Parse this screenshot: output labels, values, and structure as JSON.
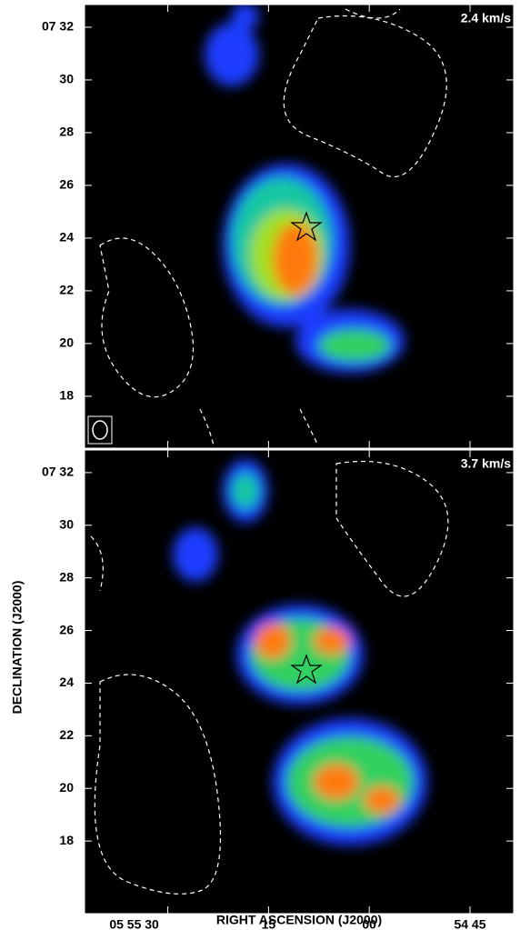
{
  "chart_data": [
    {
      "type": "image",
      "label": "2.4 km/s",
      "xlim": [
        102.4,
        38.5
      ],
      "xticks": [
        {
          "value": 90,
          "label": "05 55 30"
        },
        {
          "value": 75,
          "label": "15"
        },
        {
          "value": 60,
          "label": "00"
        },
        {
          "value": 45,
          "label": "54 45"
        }
      ],
      "ylim": [
        16.03,
        32.86
      ],
      "yticks": [
        {
          "value": 32,
          "label": "07 32"
        },
        30,
        28,
        26,
        24,
        22,
        20,
        18
      ]
    },
    {
      "type": "image",
      "label": "3.7 km/s",
      "xlim": [
        102.4,
        38.5
      ],
      "xticks": [
        {
          "value": 90,
          "label": "05 55 30"
        },
        {
          "value": 75,
          "label": "15"
        },
        {
          "value": 60,
          "label": "00"
        },
        {
          "value": 45,
          "label": "54 45"
        }
      ],
      "ylim": [
        15.24,
        32.86
      ],
      "yticks": [
        {
          "value": 32,
          "label": "07 32"
        },
        30,
        28,
        26,
        24,
        22,
        20,
        18
      ],
      "x_label": "RIGHT ASCENSION (J2000)",
      "y_label": "DECLINATION (J2000)"
    }
  ]
}
